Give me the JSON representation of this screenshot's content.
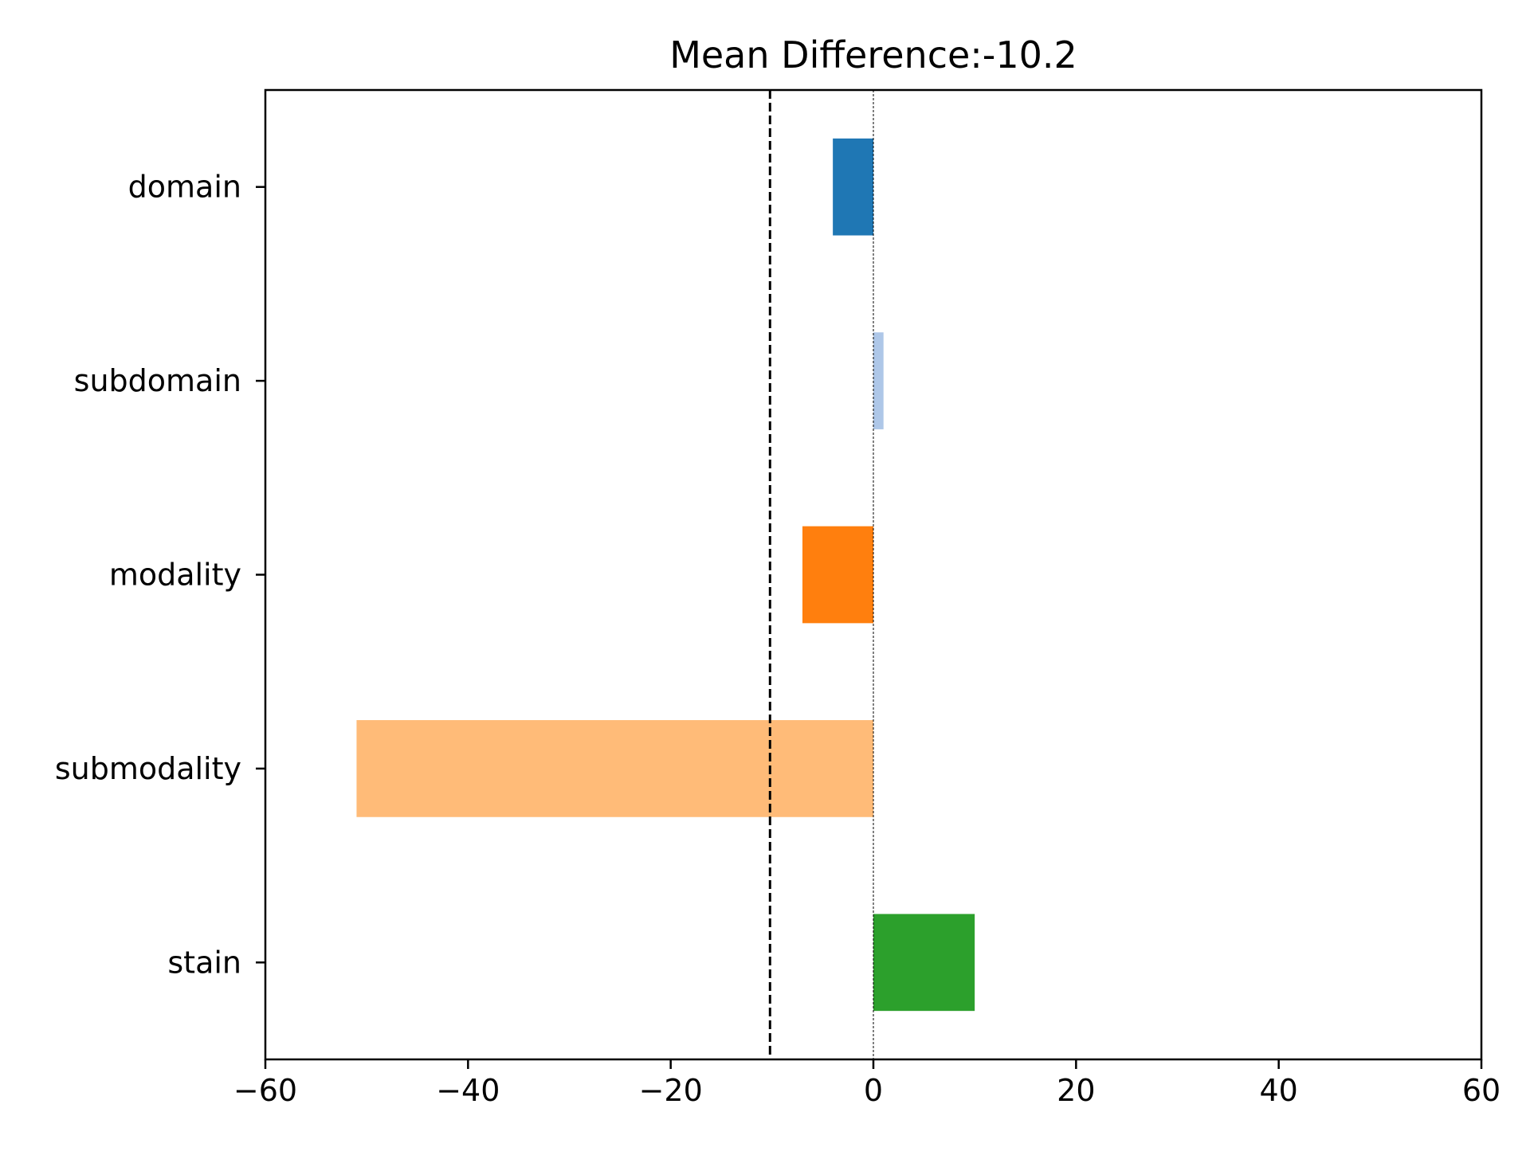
{
  "chart_data": {
    "type": "bar",
    "orientation": "horizontal",
    "title": "Mean Difference:-10.2",
    "xlabel": "",
    "ylabel": "",
    "categories": [
      "domain",
      "subdomain",
      "modality",
      "submodality",
      "stain"
    ],
    "values": [
      -4.0,
      1.0,
      -7.0,
      -51.0,
      10.0
    ],
    "colors": [
      "#1f77b4",
      "#aec7e8",
      "#ff7f0e",
      "#ffbb78",
      "#2ca02c"
    ],
    "xlim": [
      -60,
      60
    ],
    "xticks": [
      -60,
      -40,
      -20,
      0,
      20,
      40,
      60
    ],
    "xtick_labels": [
      "−60",
      "−40",
      "−20",
      "0",
      "20",
      "40",
      "60"
    ],
    "mean_line": -10.2,
    "zero_line": 0,
    "grid": false,
    "legend": "none"
  }
}
